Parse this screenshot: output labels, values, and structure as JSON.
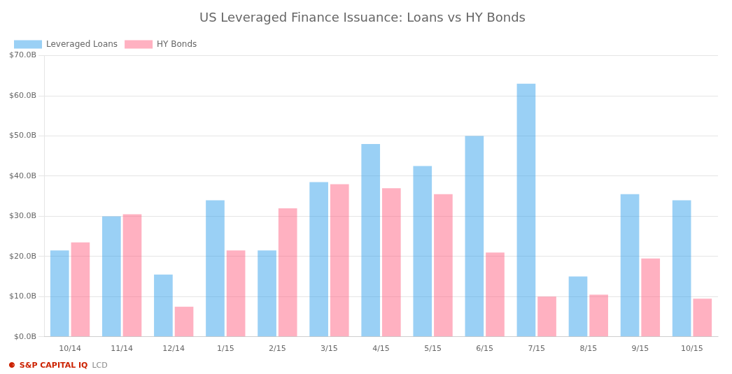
{
  "chart_data": {
    "type": "bar",
    "title": "US Leveraged Finance Issuance: Loans vs HY Bonds",
    "categories": [
      "10/14",
      "11/14",
      "12/14",
      "1/15",
      "2/15",
      "3/15",
      "4/15",
      "5/15",
      "6/15",
      "7/15",
      "8/15",
      "9/15",
      "10/15"
    ],
    "series": [
      {
        "name": "Leveraged Loans",
        "values": [
          21.5,
          30.0,
          15.5,
          34.0,
          21.5,
          38.5,
          48.0,
          42.5,
          50.0,
          63.0,
          15.0,
          35.5,
          34.0
        ]
      },
      {
        "name": "HY Bonds",
        "values": [
          23.5,
          30.5,
          7.5,
          21.5,
          32.0,
          38.0,
          37.0,
          35.5,
          21.0,
          10.0,
          10.5,
          19.5,
          9.5
        ]
      }
    ],
    "ylim": [
      0,
      70
    ],
    "yticks": [
      {
        "value": 0,
        "label": "$0.0B"
      },
      {
        "value": 10,
        "label": "$10.0B"
      },
      {
        "value": 20,
        "label": "$20.0B"
      },
      {
        "value": 30,
        "label": "$30.0B"
      },
      {
        "value": 40,
        "label": "$40.0B"
      },
      {
        "value": 50,
        "label": "$50.0B"
      },
      {
        "value": 60,
        "label": "$60.0B"
      },
      {
        "value": 70,
        "label": "$70.0B"
      }
    ],
    "grid": true,
    "legend": "upper left",
    "annotations": [
      {
        "text": "⚈",
        "color": "#CC2200"
      },
      {
        "text": "S&P CAPITAL IQ",
        "color": "#CC2200"
      },
      {
        "text": "LCD",
        "color": "#888888"
      }
    ]
  }
}
